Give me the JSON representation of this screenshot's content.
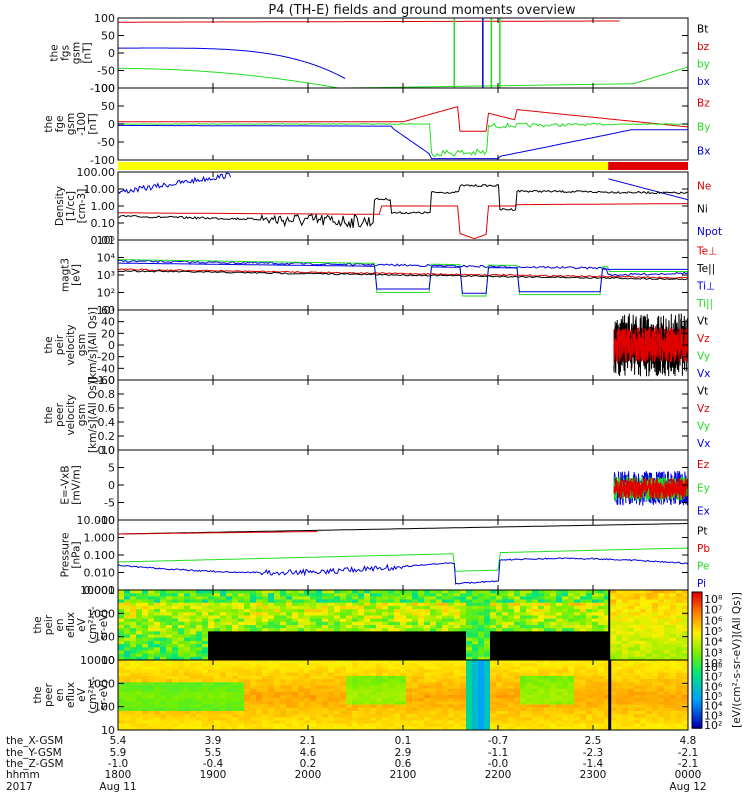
{
  "title": "P4 (TH-E) fields and ground moments overview",
  "colors": {
    "black": "#000000",
    "red": "#e00000",
    "green": "#22dd22",
    "blue": "#0000e0",
    "yellow": "#ffff00"
  },
  "chart_data": [
    {
      "type": "line",
      "ylabel": [
        "the",
        "fgs",
        "gsm",
        "[nT]"
      ],
      "yticks": [
        "100",
        "50",
        "0",
        "-50",
        "-100"
      ],
      "ylim": [
        -100,
        100
      ],
      "legend": [
        {
          "name": "Bt",
          "color": "black"
        },
        {
          "name": "bz",
          "color": "red"
        },
        {
          "name": "by",
          "color": "green"
        },
        {
          "name": "bx",
          "color": "blue"
        }
      ]
    },
    {
      "type": "line",
      "ylabel": [
        "the",
        "fge",
        "gsm",
        "-100",
        "[nT]"
      ],
      "yticks": [
        "100",
        "50",
        "0",
        "-50",
        "-100"
      ],
      "ylim": [
        -120,
        100
      ],
      "legend": [
        {
          "name": "Bz",
          "color": "red"
        },
        {
          "name": "By",
          "color": "green"
        },
        {
          "name": "Bx",
          "color": "blue"
        }
      ]
    },
    {
      "type": "line",
      "ylabel": [
        "Density",
        "[1/cc]",
        "[cm-3]"
      ],
      "yticks": [
        "100.00",
        "10.00",
        "1.00",
        "0.10",
        "0.01"
      ],
      "log": true,
      "legend": [
        {
          "name": "Ne",
          "color": "red"
        },
        {
          "name": "Ni",
          "color": "black"
        },
        {
          "name": "Npot",
          "color": "blue"
        }
      ]
    },
    {
      "type": "line",
      "ylabel": [
        "magt3",
        "[eV]"
      ],
      "yticks": [
        "10⁵",
        "10⁴",
        "10³",
        "10²",
        "10¹"
      ],
      "log": true,
      "legend": [
        {
          "name": "Te⊥",
          "color": "red"
        },
        {
          "name": "Te||",
          "color": "black"
        },
        {
          "name": "Ti⊥",
          "color": "blue"
        },
        {
          "name": "Ti||",
          "color": "green"
        }
      ]
    },
    {
      "type": "line",
      "ylabel": [
        "the",
        "peir",
        "velocity",
        "gsm",
        "[km/s](All Qs)]"
      ],
      "yticks": [
        "60",
        "40",
        "20",
        "0",
        "-20",
        "-40",
        "-60"
      ],
      "ylim": [
        -60,
        60
      ],
      "legend": [
        {
          "name": "Vt",
          "color": "black"
        },
        {
          "name": "Vz",
          "color": "red"
        },
        {
          "name": "Vy",
          "color": "green"
        },
        {
          "name": "Vx",
          "color": "blue"
        }
      ]
    },
    {
      "type": "line",
      "ylabel": [
        "the",
        "peer",
        "velocity",
        "gsm",
        "[km/s](All Qs)]"
      ],
      "yticks": [
        "1.0",
        "0.8",
        "0.6",
        "0.4",
        "0.2",
        "0.0"
      ],
      "ylim": [
        0,
        1
      ],
      "legend": [
        {
          "name": "Vt",
          "color": "black"
        },
        {
          "name": "Vz",
          "color": "red"
        },
        {
          "name": "Vy",
          "color": "green"
        },
        {
          "name": "Vx",
          "color": "blue"
        }
      ]
    },
    {
      "type": "line",
      "ylabel": [
        "E=-VxB",
        "[mV/m]"
      ],
      "yticks": [
        "10",
        "5",
        "0",
        "-5",
        "-10"
      ],
      "ylim": [
        -12,
        12
      ],
      "legend": [
        {
          "name": "Ez",
          "color": "red"
        },
        {
          "name": "Ey",
          "color": "green"
        },
        {
          "name": "Ex",
          "color": "blue"
        }
      ]
    },
    {
      "type": "line",
      "ylabel": [
        "Pressure",
        "[nPa]"
      ],
      "yticks": [
        "10.000",
        "1.000",
        "0.100",
        "0.010",
        "0.001"
      ],
      "log": true,
      "legend": [
        {
          "name": "Pt",
          "color": "black"
        },
        {
          "name": "Pb",
          "color": "red"
        },
        {
          "name": "Pe",
          "color": "green"
        },
        {
          "name": "Pi",
          "color": "blue"
        }
      ]
    },
    {
      "type": "heatmap",
      "ylabel": [
        "the",
        "peir",
        "en",
        "eflux",
        "eV",
        "(cm²-s-",
        "sr-eV)"
      ],
      "yticks": [
        "10000",
        "1000",
        "100",
        "10"
      ],
      "log": true
    },
    {
      "type": "heatmap",
      "ylabel": [
        "the",
        "peer",
        "en",
        "eflux",
        "eV",
        "(cm²-s-",
        "sr-eV)"
      ],
      "yticks": [
        "10000",
        "1000",
        "100",
        "10"
      ],
      "log": true
    }
  ],
  "colorbar": {
    "ticks": [
      "10⁸",
      "10⁷",
      "10⁶",
      "10⁵",
      "10⁴",
      "10³",
      "10²"
    ],
    "label": "[eV/(cm²-s-sr-eV)](All Qs)]"
  },
  "x_axis": {
    "rows": [
      {
        "label": "the_X-GSM",
        "values": [
          "5.4",
          "3.9",
          "2.1",
          "0.1",
          "-0.7",
          "2.5",
          "4.8"
        ]
      },
      {
        "label": "the_Y-GSM",
        "values": [
          "5.9",
          "5.5",
          "4.6",
          "2.9",
          "-1.1",
          "-2.3",
          "-2.1"
        ]
      },
      {
        "label": "the_Z-GSM",
        "values": [
          "-1.0",
          "-0.4",
          "0.2",
          "0.6",
          "-0.0",
          "-1.4",
          "-2.1"
        ]
      },
      {
        "label": "hhmm",
        "values": [
          "1800",
          "1900",
          "2000",
          "2100",
          "2200",
          "2300",
          "0000"
        ]
      }
    ],
    "year": "2017",
    "dates": [
      "Aug 11",
      "Aug 12"
    ]
  }
}
